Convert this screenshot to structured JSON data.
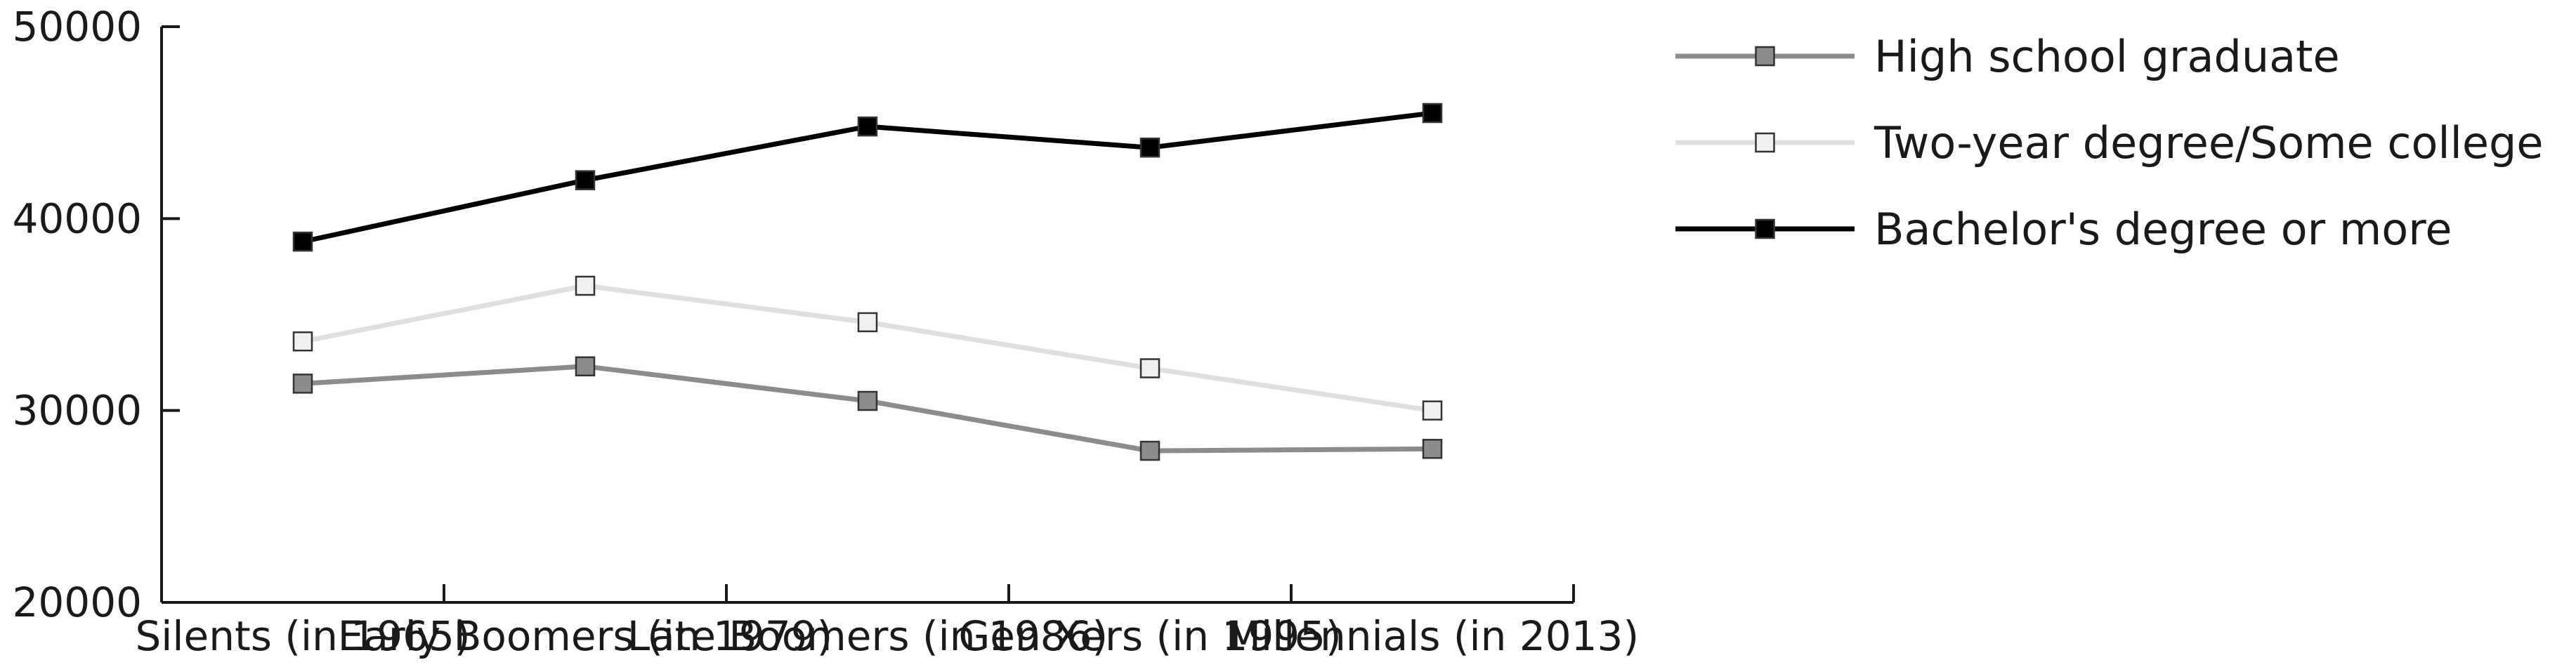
{
  "chart_data": {
    "type": "line",
    "categories": [
      "Silents (in 1965)",
      "Early Boomers (in 1979)",
      "Late Boomers (in 1986)",
      "Gen Xers (in 1995)",
      "Millennials (in 2013)"
    ],
    "series": [
      {
        "name": "High school graduate",
        "values": [
          31400,
          32300,
          30500,
          27900,
          28000
        ],
        "color": "#8c8c8c",
        "marker": "#8c8c8c"
      },
      {
        "name": "Two-year degree/Some college",
        "values": [
          33600,
          36500,
          34600,
          32200,
          30000
        ],
        "color": "#e0e0e0",
        "marker": "#f0f0f0"
      },
      {
        "name": "Bachelor's degree or more",
        "values": [
          38800,
          42000,
          44800,
          43700,
          45500
        ],
        "color": "#000000",
        "marker": "#000000"
      }
    ],
    "ylim": [
      20000,
      50000
    ],
    "yticks": [
      "20000",
      "30000",
      "40000",
      "50000"
    ],
    "xlabel": "",
    "ylabel": "",
    "grid": false,
    "legend_position": "right"
  }
}
